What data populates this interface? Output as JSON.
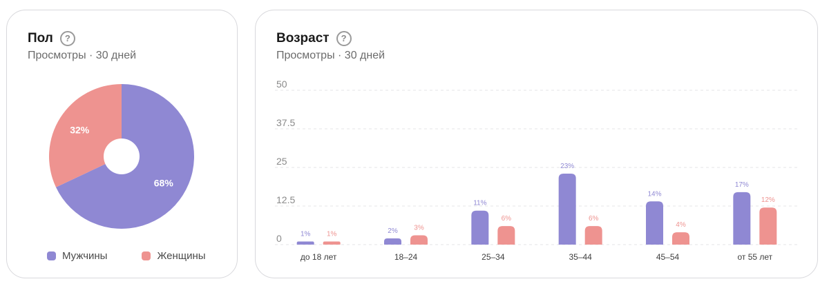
{
  "colors": {
    "male": "#8f88d3",
    "female": "#ee9390"
  },
  "gender_card": {
    "title": "Пол",
    "subtitle": "Просмотры · 30 дней",
    "help_icon": "question-circle-icon",
    "legend": [
      "Мужчины",
      "Женщины"
    ]
  },
  "age_card": {
    "title": "Возраст",
    "subtitle": "Просмотры · 30 дней",
    "help_icon": "question-circle-icon"
  },
  "chart_data": [
    {
      "type": "pie",
      "donut": true,
      "labels": [
        "Мужчины",
        "Женщины"
      ],
      "values": [
        68,
        32
      ],
      "data_labels": [
        "68%",
        "32%"
      ],
      "legend": "bottom"
    },
    {
      "type": "bar",
      "categories": [
        "до 18 лет",
        "18–24",
        "25–34",
        "35–44",
        "45–54",
        "от 55 лет"
      ],
      "series": [
        {
          "name": "Мужчины",
          "values": [
            1,
            2,
            11,
            23,
            14,
            17
          ],
          "labels": [
            "1%",
            "2%",
            "11%",
            "23%",
            "14%",
            "17%"
          ]
        },
        {
          "name": "Женщины",
          "values": [
            1,
            3,
            6,
            6,
            4,
            12
          ],
          "labels": [
            "1%",
            "3%",
            "6%",
            "6%",
            "4%",
            "12%"
          ]
        }
      ],
      "ylim": [
        0,
        50
      ],
      "yticks": [
        "0",
        "12.5",
        "25",
        "37.5",
        "50"
      ],
      "grid": true
    }
  ]
}
